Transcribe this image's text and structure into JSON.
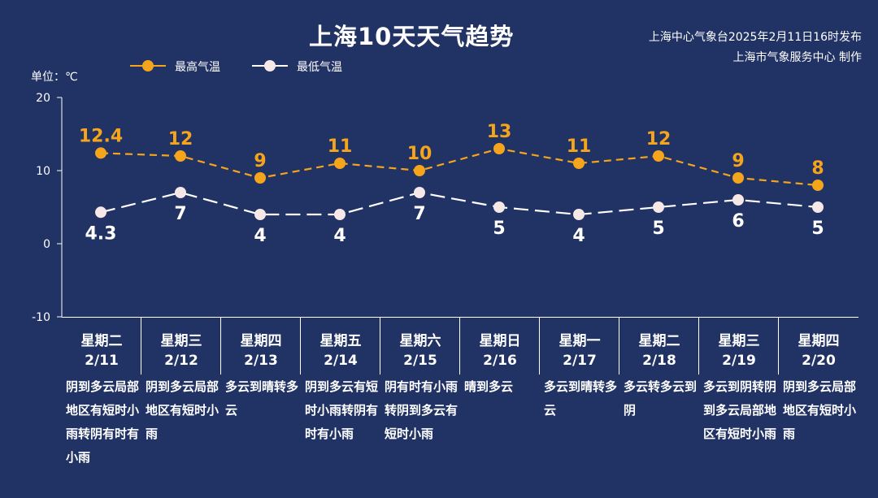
{
  "header": {
    "title": "上海10天天气趋势",
    "source_line1": "上海中心气象台2025年2月11日16时发布",
    "source_line2": "上海市气象服务中心 制作"
  },
  "legend": {
    "high_label": "最高气温",
    "low_label": "最低气温"
  },
  "unit_label": "单位：℃",
  "colors": {
    "background": "#213264",
    "high": "#f5a51c",
    "low": "#ffffff",
    "low_marker": "#f6e8e6"
  },
  "days": [
    {
      "weekday": "星期二",
      "date": "2/11",
      "condition": "阴到多云局部地区有短时小雨转阴有时有小雨"
    },
    {
      "weekday": "星期三",
      "date": "2/12",
      "condition": "阴到多云局部地区有短时小雨"
    },
    {
      "weekday": "星期四",
      "date": "2/13",
      "condition": "多云到晴转多云"
    },
    {
      "weekday": "星期五",
      "date": "2/14",
      "condition": "阴到多云有短时小雨转阴有时有小雨"
    },
    {
      "weekday": "星期六",
      "date": "2/15",
      "condition": "阴有时有小雨转阴到多云有短时小雨"
    },
    {
      "weekday": "星期日",
      "date": "2/16",
      "condition": "晴到多云"
    },
    {
      "weekday": "星期一",
      "date": "2/17",
      "condition": "多云到晴转多云"
    },
    {
      "weekday": "星期二",
      "date": "2/18",
      "condition": "多云转多云到阴"
    },
    {
      "weekday": "星期三",
      "date": "2/19",
      "condition": "多云到阴转阴到多云局部地区有短时小雨"
    },
    {
      "weekday": "星期四",
      "date": "2/20",
      "condition": "阴到多云局部地区有短时小雨"
    }
  ],
  "chart_data": {
    "type": "line",
    "categories": [
      "2/11",
      "2/12",
      "2/13",
      "2/14",
      "2/15",
      "2/16",
      "2/17",
      "2/18",
      "2/19",
      "2/20"
    ],
    "series": [
      {
        "name": "最高气温",
        "values": [
          12.4,
          12,
          9,
          11,
          10,
          13,
          11,
          12,
          9,
          8
        ],
        "labels": [
          "12.4",
          "12",
          "9",
          "11",
          "10",
          "13",
          "11",
          "12",
          "9",
          "8"
        ]
      },
      {
        "name": "最低气温",
        "values": [
          4.3,
          7,
          4,
          4,
          7,
          5,
          4,
          5,
          6,
          5
        ],
        "labels": [
          "4.3",
          "7",
          "4",
          "4",
          "7",
          "5",
          "4",
          "5",
          "6",
          "5"
        ]
      }
    ],
    "ylim": [
      -10,
      20
    ],
    "yticks": [
      -10,
      0,
      10,
      20
    ],
    "ylabel": "单位：℃",
    "grid": false,
    "legend": "top-left"
  }
}
